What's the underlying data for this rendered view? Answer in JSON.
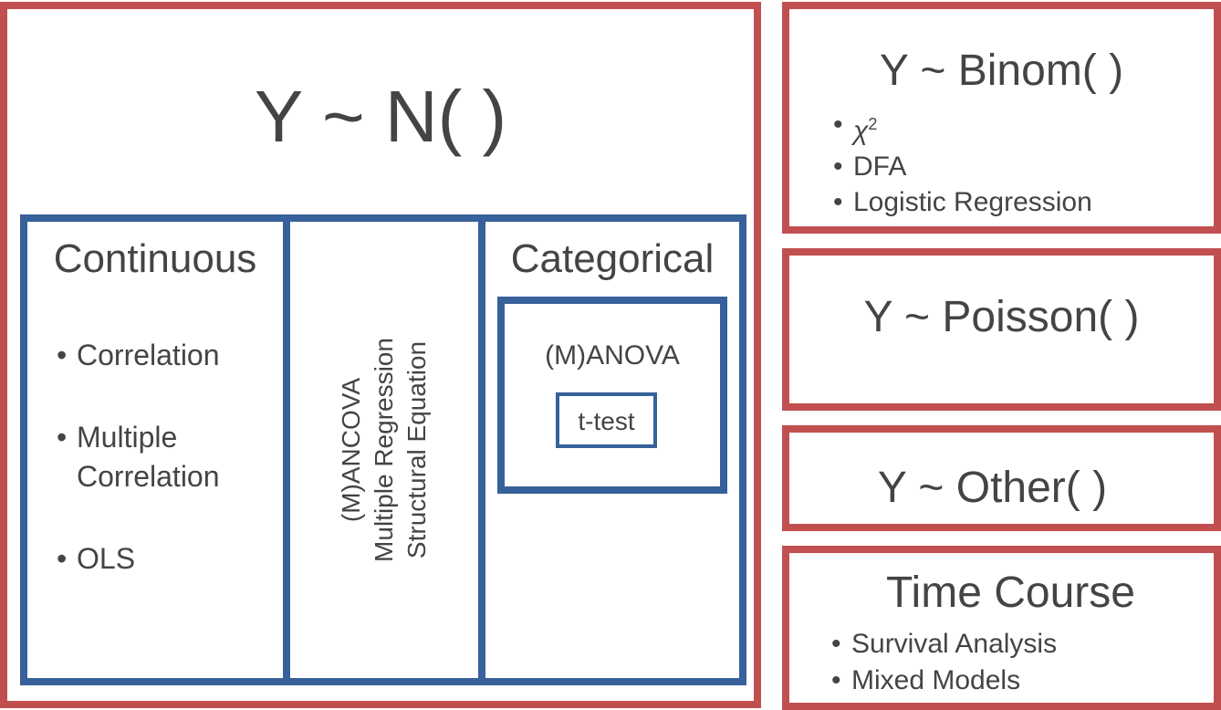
{
  "normal": {
    "title": "Y ~ N( )",
    "continuous": {
      "title": "Continuous",
      "items": [
        "Correlation",
        "Multiple\nCorrelation",
        "OLS"
      ]
    },
    "middle": {
      "lines": [
        "(M)ANCOVA",
        "Multiple Regression",
        "Structural Equation"
      ]
    },
    "categorical": {
      "title": "Categorical",
      "anova": "(M)ANOVA",
      "ttest": "t-test"
    }
  },
  "binom": {
    "title": "Y ~ Binom( )",
    "items": [
      "χ",
      "DFA",
      "Logistic Regression"
    ],
    "chi_superscript": "2"
  },
  "poisson": {
    "title": "Y ~ Poisson( )"
  },
  "other": {
    "title": "Y ~ Other( )"
  },
  "timecourse": {
    "title": "Time Course",
    "items": [
      "Survival Analysis",
      "Mixed Models"
    ]
  },
  "colors": {
    "red_border": "#c24f4f",
    "blue_border": "#37619a",
    "text": "#444444"
  }
}
